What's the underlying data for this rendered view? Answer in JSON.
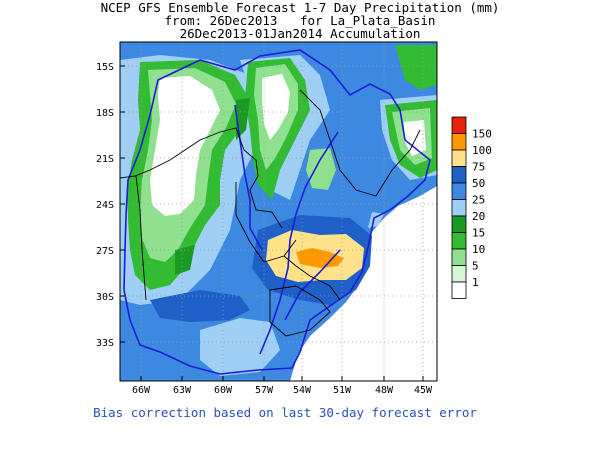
{
  "title": {
    "line1": "NCEP GFS Ensemble Forecast 1-7 Day Precipitation (mm)",
    "line2": "from: 26Dec2013   for La_Plata_Basin",
    "line3": "26Dec2013-01Jan2014 Accumulation"
  },
  "map": {
    "lat_ticks": [
      "15S",
      "18S",
      "21S",
      "24S",
      "27S",
      "30S",
      "33S"
    ],
    "lon_ticks": [
      "66W",
      "63W",
      "60W",
      "57W",
      "54W",
      "51W",
      "48W",
      "45W"
    ]
  },
  "legend": {
    "levels": [
      {
        "label": "150",
        "color": "#e8210c"
      },
      {
        "label": "100",
        "color": "#ff9900"
      },
      {
        "label": "75",
        "color": "#ffe28a"
      },
      {
        "label": "50",
        "color": "#1f5fc8"
      },
      {
        "label": "25",
        "color": "#3d88e0"
      },
      {
        "label": "20",
        "color": "#9fcff5"
      },
      {
        "label": "15",
        "color": "#1a9a23"
      },
      {
        "label": "10",
        "color": "#33bb33"
      },
      {
        "label": "5",
        "color": "#8fe08f"
      },
      {
        "label": "1",
        "color": "#d6f7d6"
      },
      {
        "label": "",
        "color": "#ffffff"
      }
    ]
  },
  "colors": {
    "ocean": "#ffffff",
    "base_blue": "#3d88e0",
    "deep_blue": "#1f5fc8",
    "light_blue": "#9fcff5",
    "border": "#000000",
    "river": "#1c1cd8",
    "grid": "#999999"
  },
  "footer": "Bias correction based on last 30-day forecast error"
}
